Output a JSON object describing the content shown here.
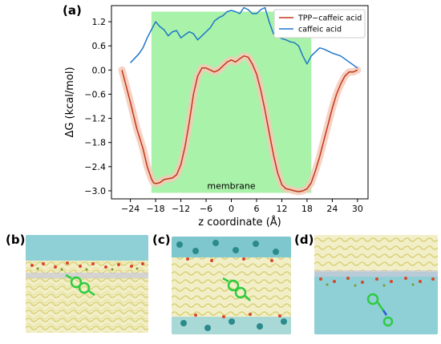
{
  "figure": {
    "panel_a_label": "(a)",
    "panel_b_label": "(b)",
    "panel_c_label": "(c)",
    "panel_d_label": "(d)"
  },
  "chart_data": {
    "type": "line",
    "title": "",
    "xlabel": "z coordinate (Å)",
    "ylabel": "ΔG (kcal/mol)",
    "xlim": [
      -28.5,
      32.5
    ],
    "ylim": [
      -3.2,
      1.6
    ],
    "xticks": [
      -24,
      -18,
      -12,
      -6,
      0,
      6,
      12,
      18,
      24,
      30
    ],
    "yticks": [
      1.2,
      0.6,
      0.0,
      -0.6,
      -1.2,
      -1.8,
      -2.4,
      -3.0
    ],
    "xtick_labels": [
      "−24",
      "−18",
      "−12",
      "−6",
      "0",
      "6",
      "12",
      "18",
      "24",
      "30"
    ],
    "ytick_labels": [
      "1.2",
      "0.6",
      "0.0",
      "−0.6",
      "−1.2",
      "−1.8",
      "−2.4",
      "−3.0"
    ],
    "legend_position": "top-right",
    "membrane_region": {
      "x": [
        -19,
        19
      ],
      "label": "membrane",
      "color": "#a9f2a9"
    },
    "series": [
      {
        "name": "TPP−caffeic acid",
        "color": "#c0391b",
        "band_color": "#f6c9b8",
        "x": [
          -26,
          -24,
          -22.5,
          -21,
          -20,
          -19,
          -18.5,
          -18,
          -17,
          -16,
          -15,
          -14,
          -13,
          -12,
          -11,
          -10,
          -9,
          -8,
          -7,
          -6,
          -5,
          -4,
          -3,
          -2,
          -1,
          0,
          1,
          2,
          3,
          4,
          5,
          6,
          7,
          8,
          9,
          10,
          11,
          12,
          13,
          14,
          15,
          16,
          17,
          18,
          19,
          20,
          21,
          22,
          23,
          24,
          25,
          26,
          27,
          28,
          29,
          30
        ],
        "y": [
          0.0,
          -0.8,
          -1.45,
          -1.95,
          -2.4,
          -2.7,
          -2.8,
          -2.82,
          -2.8,
          -2.72,
          -2.7,
          -2.68,
          -2.6,
          -2.35,
          -1.9,
          -1.3,
          -0.6,
          -0.15,
          0.05,
          0.05,
          0.0,
          -0.05,
          0.0,
          0.1,
          0.2,
          0.25,
          0.2,
          0.28,
          0.35,
          0.32,
          0.15,
          -0.1,
          -0.5,
          -1.0,
          -1.55,
          -2.1,
          -2.55,
          -2.85,
          -2.95,
          -2.97,
          -3.0,
          -3.02,
          -3.0,
          -2.95,
          -2.8,
          -2.5,
          -2.15,
          -1.75,
          -1.35,
          -0.95,
          -0.6,
          -0.35,
          -0.15,
          -0.05,
          -0.05,
          0.0
        ]
      },
      {
        "name": "caffeic acid",
        "color": "#1f77c8",
        "x": [
          -24,
          -22,
          -21,
          -20,
          -19,
          -18,
          -17,
          -16,
          -15,
          -14,
          -13,
          -12,
          -11,
          -10,
          -9,
          -8,
          -7,
          -6,
          -5,
          -4,
          -3,
          -2,
          -1,
          0,
          1,
          2,
          3,
          4,
          5,
          6,
          7,
          8,
          9,
          10,
          11,
          12,
          13,
          14,
          15,
          16,
          17,
          18,
          19,
          20,
          21,
          22,
          24,
          26,
          28,
          30
        ],
        "y": [
          0.18,
          0.4,
          0.55,
          0.8,
          1.0,
          1.2,
          1.08,
          1.0,
          0.85,
          0.95,
          0.98,
          0.8,
          0.88,
          0.95,
          0.9,
          0.75,
          0.85,
          0.95,
          1.05,
          1.22,
          1.3,
          1.35,
          1.45,
          1.48,
          1.45,
          1.4,
          1.55,
          1.5,
          1.4,
          1.4,
          1.5,
          1.55,
          1.2,
          0.9,
          0.85,
          0.78,
          0.75,
          0.7,
          0.68,
          0.6,
          0.35,
          0.15,
          0.35,
          0.45,
          0.55,
          0.52,
          0.42,
          0.35,
          0.2,
          0.05
        ]
      }
    ]
  }
}
